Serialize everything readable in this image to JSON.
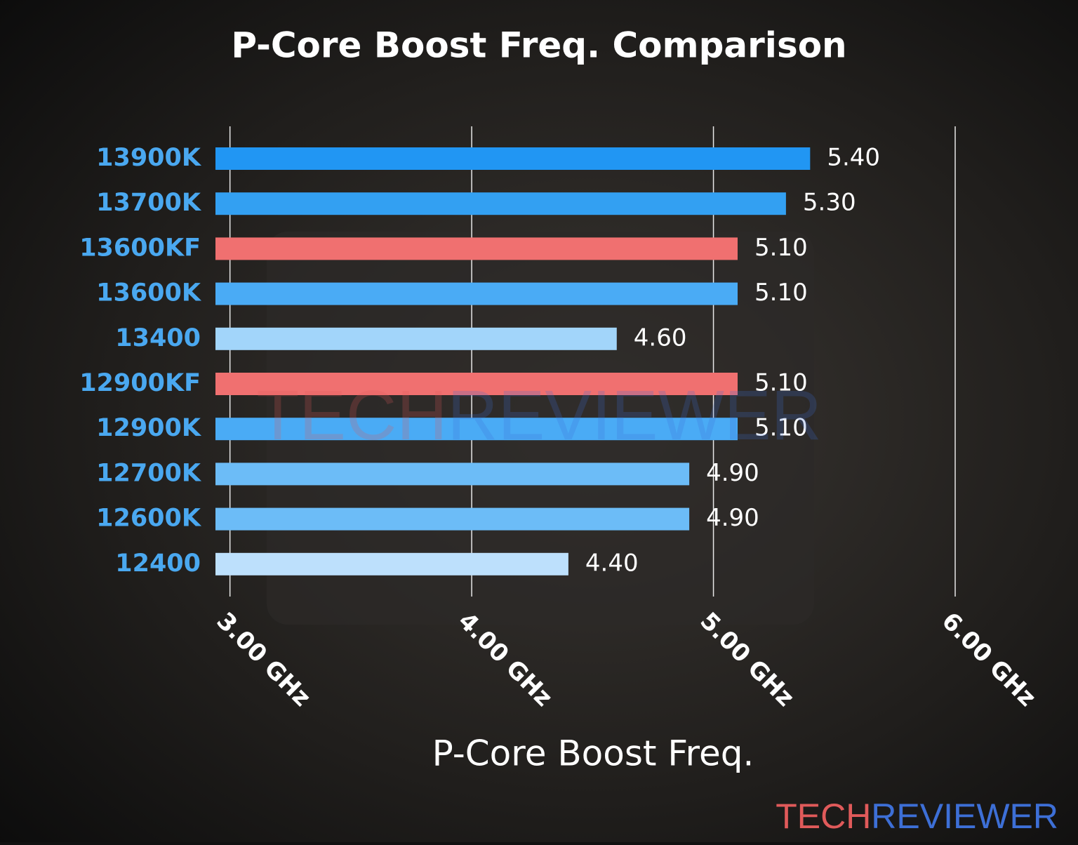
{
  "chart_data": {
    "type": "bar",
    "orientation": "horizontal",
    "title": "P-Core Boost Freq. Comparison",
    "xlabel": "P-Core Boost Freq.",
    "categories": [
      "13900K",
      "13700K",
      "13600KF",
      "13600K",
      "13400",
      "12900KF",
      "12900K",
      "12700K",
      "12600K",
      "12400"
    ],
    "values": [
      5.4,
      5.3,
      5.1,
      5.1,
      4.6,
      5.1,
      5.1,
      4.9,
      4.9,
      4.4
    ],
    "value_labels": [
      "5.40",
      "5.30",
      "5.10",
      "5.10",
      "4.60",
      "5.10",
      "5.10",
      "4.90",
      "4.90",
      "4.40"
    ],
    "colors": [
      "#2196f3",
      "#33a0f2",
      "#f07070",
      "#4aabf5",
      "#a2d5fa",
      "#f07070",
      "#4aabf5",
      "#6cbcf7",
      "#6cbcf7",
      "#bde0fc"
    ],
    "xlim": [
      2.94,
      6.0
    ],
    "xticks": [
      {
        "value": 3,
        "label": "3.00 GHz"
      },
      {
        "value": 4,
        "label": "4.00 GHz"
      },
      {
        "value": 5,
        "label": "5.00 GHz"
      },
      {
        "value": 6,
        "label": "6.00 GHz"
      }
    ],
    "grid": true
  },
  "brand": {
    "part1": "TECH",
    "part2": "REVIEWER"
  }
}
